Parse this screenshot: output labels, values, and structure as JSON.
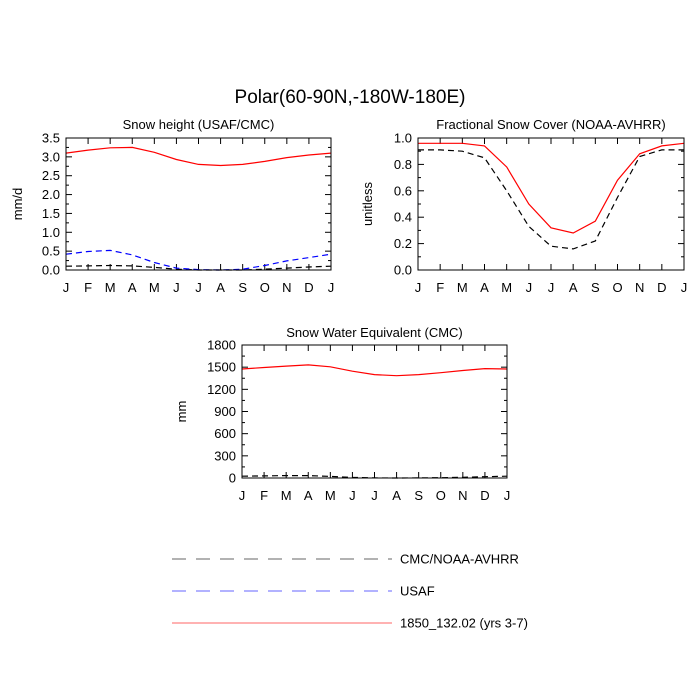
{
  "figure": {
    "title": "Polar(60-90N,-180W-180E)"
  },
  "legend": {
    "entries": [
      {
        "label": "CMC/NOAA-AVHRR",
        "color": "#000000",
        "dash": "dashed"
      },
      {
        "label": "USAF",
        "color": "#0000ff",
        "dash": "dashed"
      },
      {
        "label": "1850_132.02 (yrs 3-7)",
        "color": "#ff0000",
        "dash": "solid"
      }
    ]
  },
  "chart_data": [
    {
      "type": "line",
      "title": "Snow height (USAF/CMC)",
      "xlabel": "",
      "ylabel": "mm/d",
      "categories": [
        "J",
        "F",
        "M",
        "A",
        "M",
        "J",
        "J",
        "A",
        "S",
        "O",
        "N",
        "D",
        "J"
      ],
      "ylim": [
        0,
        3.5
      ],
      "yticks": [
        0.0,
        0.5,
        1.0,
        1.5,
        2.0,
        2.5,
        3.0,
        3.5
      ],
      "ytick_labels": [
        "0.0",
        "0.5",
        "1.0",
        "1.5",
        "2.0",
        "2.5",
        "3.0",
        "3.5"
      ],
      "series": [
        {
          "name": "CMC/NOAA-AVHRR",
          "color": "#000000",
          "dash": "dashed",
          "values": [
            0.1,
            0.11,
            0.12,
            0.11,
            0.07,
            0.02,
            0.0,
            0.0,
            0.0,
            0.02,
            0.05,
            0.08,
            0.1
          ]
        },
        {
          "name": "USAF",
          "color": "#0000ff",
          "dash": "dashed",
          "values": [
            0.42,
            0.49,
            0.52,
            0.4,
            0.2,
            0.05,
            0.01,
            0.0,
            0.02,
            0.12,
            0.24,
            0.33,
            0.42
          ]
        },
        {
          "name": "1850_132.02 (yrs 3-7)",
          "color": "#ff0000",
          "dash": "solid",
          "values": [
            3.1,
            3.18,
            3.24,
            3.25,
            3.12,
            2.93,
            2.8,
            2.77,
            2.8,
            2.88,
            2.98,
            3.05,
            3.1
          ]
        }
      ]
    },
    {
      "type": "line",
      "title": "Fractional Snow Cover (NOAA-AVHRR)",
      "xlabel": "",
      "ylabel": "unitless",
      "categories": [
        "J",
        "F",
        "M",
        "A",
        "M",
        "J",
        "J",
        "A",
        "S",
        "O",
        "N",
        "D",
        "J"
      ],
      "ylim": [
        0,
        1.0
      ],
      "yticks": [
        0.0,
        0.2,
        0.4,
        0.6,
        0.8,
        1.0
      ],
      "ytick_labels": [
        "0.0",
        "0.2",
        "0.4",
        "0.6",
        "0.8",
        "1.0"
      ],
      "series": [
        {
          "name": "CMC/NOAA-AVHRR",
          "color": "#000000",
          "dash": "dashed",
          "values": [
            0.91,
            0.91,
            0.9,
            0.85,
            0.6,
            0.33,
            0.18,
            0.16,
            0.22,
            0.55,
            0.86,
            0.91,
            0.91
          ]
        },
        {
          "name": "1850_132.02 (yrs 3-7)",
          "color": "#ff0000",
          "dash": "solid",
          "values": [
            0.96,
            0.96,
            0.96,
            0.94,
            0.78,
            0.5,
            0.32,
            0.28,
            0.37,
            0.68,
            0.88,
            0.94,
            0.96
          ]
        }
      ]
    },
    {
      "type": "line",
      "title": "Snow Water Equivalent (CMC)",
      "xlabel": "",
      "ylabel": "mm",
      "categories": [
        "J",
        "F",
        "M",
        "A",
        "M",
        "J",
        "J",
        "A",
        "S",
        "O",
        "N",
        "D",
        "J"
      ],
      "ylim": [
        0,
        1800
      ],
      "yticks": [
        0,
        300,
        600,
        900,
        1200,
        1500,
        1800
      ],
      "ytick_labels": [
        "0",
        "300",
        "600",
        "900",
        "1200",
        "1500",
        "1800"
      ],
      "series": [
        {
          "name": "CMC/NOAA-AVHRR",
          "color": "#000000",
          "dash": "dashed",
          "values": [
            25,
            28,
            32,
            32,
            22,
            8,
            2,
            0,
            1,
            4,
            10,
            18,
            25
          ]
        },
        {
          "name": "1850_132.02 (yrs 3-7)",
          "color": "#ff0000",
          "dash": "solid",
          "values": [
            1475,
            1495,
            1515,
            1530,
            1505,
            1445,
            1400,
            1385,
            1400,
            1425,
            1455,
            1480,
            1475
          ]
        }
      ]
    }
  ]
}
